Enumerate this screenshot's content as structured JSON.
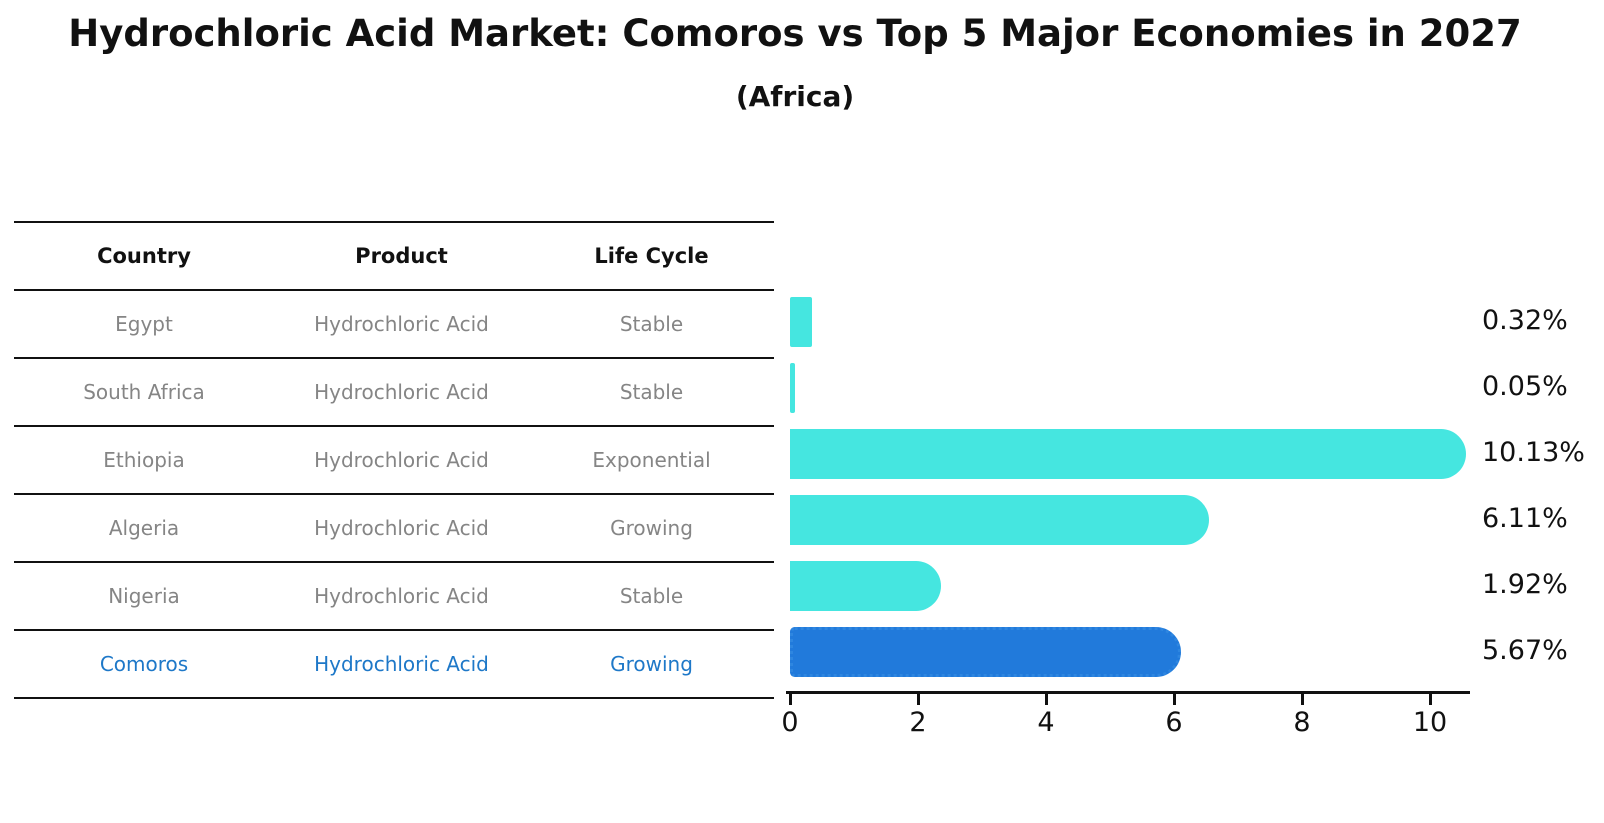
{
  "title": "Hydrochloric Acid Market: Comoros vs Top 5 Major Economies in 2027",
  "subtitle": "(Africa)",
  "table": {
    "headers": [
      "Country",
      "Product",
      "Life Cycle"
    ]
  },
  "rows": [
    {
      "country": "Egypt",
      "product": "Hydrochloric Acid",
      "life_cycle": "Stable",
      "value": 0.32,
      "label": "0.32%",
      "highlight": false
    },
    {
      "country": "South Africa",
      "product": "Hydrochloric Acid",
      "life_cycle": "Stable",
      "value": 0.05,
      "label": "0.05%",
      "highlight": false
    },
    {
      "country": "Ethiopia",
      "product": "Hydrochloric Acid",
      "life_cycle": "Exponential",
      "value": 10.13,
      "label": "10.13%",
      "highlight": false
    },
    {
      "country": "Algeria",
      "product": "Hydrochloric Acid",
      "life_cycle": "Growing",
      "value": 6.11,
      "label": "6.11%",
      "highlight": false
    },
    {
      "country": "Nigeria",
      "product": "Hydrochloric Acid",
      "life_cycle": "Stable",
      "value": 1.92,
      "label": "1.92%",
      "highlight": false
    },
    {
      "country": "Comoros",
      "product": "Hydrochloric Acid",
      "life_cycle": "Growing",
      "value": 5.67,
      "label": "5.67%",
      "highlight": true
    }
  ],
  "chart_data": {
    "type": "bar",
    "orientation": "horizontal",
    "title": "Hydrochloric Acid Market: Comoros vs Top 5 Major Economies in 2027 (Africa)",
    "categories": [
      "Egypt",
      "South Africa",
      "Ethiopia",
      "Algeria",
      "Nigeria",
      "Comoros"
    ],
    "values": [
      0.32,
      0.05,
      10.13,
      6.11,
      1.92,
      5.67
    ],
    "value_labels": [
      "0.32%",
      "0.05%",
      "10.13%",
      "6.11%",
      "1.92%",
      "5.67%"
    ],
    "xticks": [
      0,
      2,
      4,
      6,
      8,
      10
    ],
    "xlim": [
      0,
      10.7
    ],
    "grid": false,
    "legend": false,
    "highlight_index": 5
  },
  "colors": {
    "bar_cyan": "#45E6E0",
    "bar_blue": "#217ADB",
    "bar_blue_border": "#2E86E0",
    "highlight_text": "#1E78C8",
    "muted_text": "#858585",
    "line": "#111111"
  }
}
